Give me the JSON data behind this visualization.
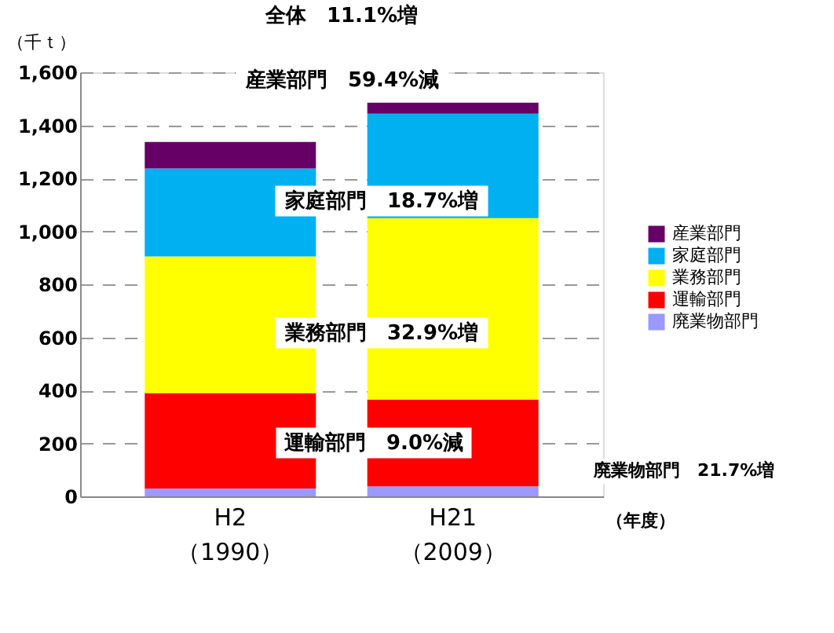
{
  "chart_data": {
    "type": "bar",
    "stacked": true,
    "title": "全体　11.1%増",
    "ylabel": "（千ｔ）",
    "xlabel": "（年度）",
    "categories": [
      "H2\n（1990）",
      "H21\n（2009）"
    ],
    "series": [
      {
        "name": "廃業物部門",
        "color": "#9999ff",
        "values": [
          30,
          38
        ]
      },
      {
        "name": "運輸部門",
        "color": "#ff0000",
        "values": [
          360,
          327
        ]
      },
      {
        "name": "業務部門",
        "color": "#ffff00",
        "values": [
          515,
          685
        ]
      },
      {
        "name": "家庭部門",
        "color": "#00b0f0",
        "values": [
          332,
          394
        ]
      },
      {
        "name": "産業部門",
        "color": "#660066",
        "values": [
          100,
          41
        ]
      }
    ],
    "ylim": [
      0,
      1600
    ],
    "yticks": [
      0,
      200,
      400,
      600,
      800,
      {
        "value": 1000,
        "label": "1,000"
      },
      {
        "value": 1200,
        "label": "1,200"
      },
      {
        "value": 1400,
        "label": "1,400"
      },
      {
        "value": 1600,
        "label": "1,600"
      }
    ],
    "grid": "y",
    "legend": "right",
    "annotations": [
      "産業部門　59.4%減",
      "家庭部門　18.7%増",
      "業務部門　32.9%増",
      "運輸部門　9.0%減",
      "廃業物部門　21.7%増"
    ]
  }
}
